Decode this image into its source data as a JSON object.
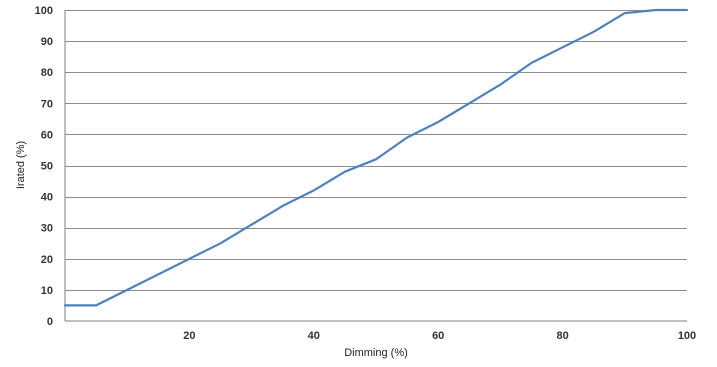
{
  "chart_data": {
    "type": "line",
    "title": "",
    "xlabel": "Dimming  (%)",
    "ylabel": "Irated (%)",
    "xlim": [
      0,
      100
    ],
    "ylim": [
      0,
      100
    ],
    "x_ticks": [
      20,
      40,
      60,
      80,
      100
    ],
    "y_ticks": [
      0,
      10,
      20,
      30,
      40,
      50,
      60,
      70,
      80,
      90,
      100
    ],
    "grid": "horizontal",
    "colors": {
      "series": "#4f81bd",
      "grid": "#8c8c8c"
    },
    "series": [
      {
        "x": [
          0,
          5,
          10,
          15,
          20,
          25,
          30,
          35,
          40,
          45,
          50,
          55,
          60,
          65,
          70,
          75,
          80,
          85,
          90,
          95,
          100
        ],
        "y": [
          5,
          5,
          10,
          15,
          20,
          25,
          31,
          37,
          42,
          48,
          52,
          59,
          64,
          70,
          76,
          83,
          88,
          93,
          99,
          100,
          100
        ]
      }
    ]
  }
}
